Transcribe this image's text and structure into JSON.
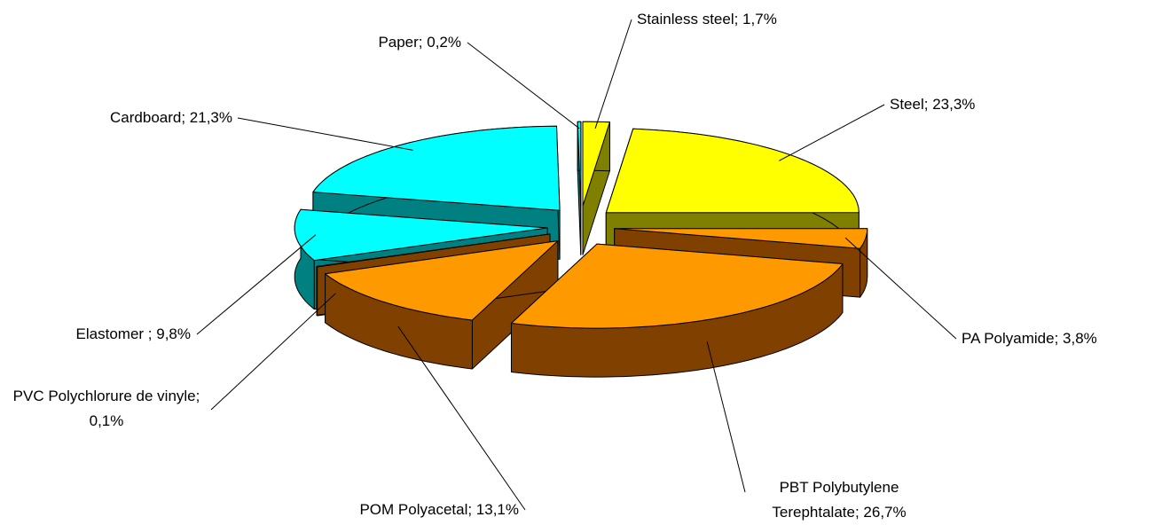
{
  "chart_data": {
    "type": "pie3d",
    "values": [
      1.7,
      23.3,
      3.8,
      26.7,
      13.1,
      0.1,
      9.8,
      21.3,
      0.2
    ],
    "value_labels": [
      "Stainless steel; 1,7%",
      "Steel; 23,3%",
      "PA Polyamide; 3,8%",
      "PBT Polybutylene Terephtalate; 26,7%",
      "POM Polyacetal; 13,1%",
      "PVC Polychlorure de vinyle; 0,1%",
      "Elastomer ; 9,8%",
      "Cardboard; 21,3%",
      "Paper; 0,2%"
    ],
    "colors": [
      "#ffff00",
      "#ffff00",
      "#ff9900",
      "#ff9900",
      "#ff9900",
      "#ff9900",
      "#00ffff",
      "#00ffff",
      "#00ffff"
    ],
    "side_colors": [
      "#808000",
      "#808000",
      "#804000",
      "#804000",
      "#804000",
      "#804000",
      "#008080",
      "#008080",
      "#008080"
    ]
  }
}
